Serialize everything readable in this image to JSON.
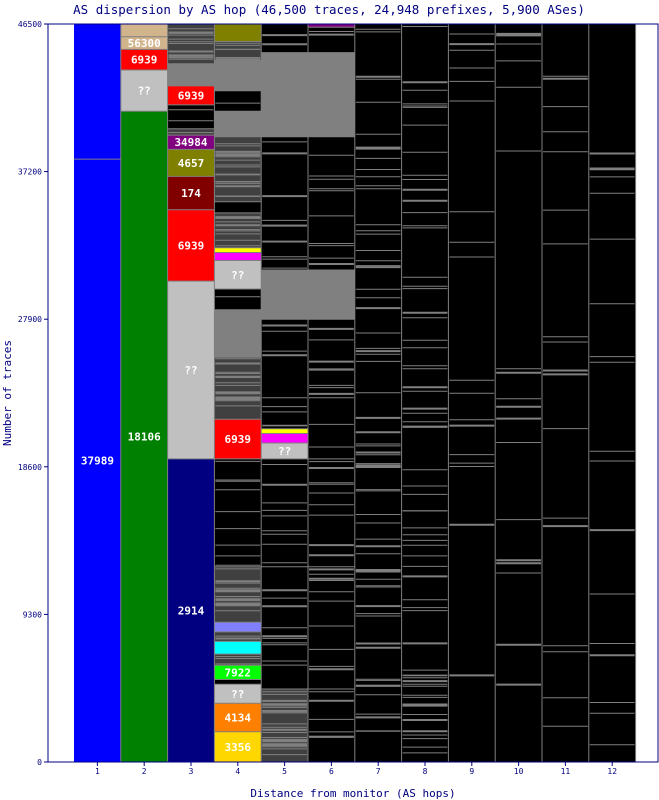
{
  "chart_data": {
    "type": "bar",
    "title": "AS dispersion by AS hop (46,500 traces, 24,948 prefixes, 5,900 ASes)",
    "xlabel": "Distance from monitor (AS hops)",
    "ylabel": "Number of traces",
    "ylim": [
      0,
      46500
    ],
    "y_ticks": [
      0,
      9300,
      18600,
      27900,
      37200,
      46500
    ],
    "categories": [
      "1",
      "2",
      "3",
      "4",
      "5",
      "6",
      "7",
      "8",
      "9",
      "10",
      "11",
      "12"
    ],
    "segment_colors": {
      "blue": "#0000ff",
      "green": "#008000",
      "navy": "#000080",
      "silver": "#c0c0c0",
      "red": "#ff0000",
      "maroon": "#800000",
      "olive": "#808000",
      "purple": "#800080",
      "tan": "#d2b48c",
      "magenta": "#ff00ff",
      "yellow": "#ffff00",
      "cyan": "#00ffff",
      "lime": "#00ff00",
      "orange": "#ff8000",
      "gold": "#ffd700",
      "lavender": "#8080ff",
      "gray": "#808080",
      "dark": "#404040",
      "black": "#000000",
      "frame": "#000080",
      "grid": "#808080"
    },
    "bars": [
      {
        "hop": "1",
        "segments": [
          {
            "start": 0,
            "end": 37989,
            "color": "blue",
            "label": "37989"
          },
          {
            "start": 37989,
            "end": 46500,
            "color": "blue",
            "label": ""
          }
        ]
      },
      {
        "hop": "2",
        "segments": [
          {
            "start": 0,
            "end": 41000,
            "color": "green",
            "label": "18106"
          },
          {
            "start": 41000,
            "end": 43600,
            "color": "silver",
            "label": "??"
          },
          {
            "start": 43600,
            "end": 44900,
            "color": "red",
            "label": "6939"
          },
          {
            "start": 44900,
            "end": 45700,
            "color": "tan",
            "label": "56300"
          },
          {
            "start": 45700,
            "end": 46500,
            "color": "tan",
            "label": ""
          }
        ]
      },
      {
        "hop": "3",
        "segments": [
          {
            "start": 0,
            "end": 19100,
            "color": "navy",
            "label": "2914"
          },
          {
            "start": 19100,
            "end": 30300,
            "color": "silver",
            "label": "??"
          },
          {
            "start": 30300,
            "end": 34800,
            "color": "red",
            "label": "6939"
          },
          {
            "start": 34800,
            "end": 36900,
            "color": "maroon",
            "label": "174"
          },
          {
            "start": 36900,
            "end": 38600,
            "color": "olive",
            "label": "4657"
          },
          {
            "start": 38600,
            "end": 39500,
            "color": "purple",
            "label": "34984"
          },
          {
            "start": 39500,
            "end": 39900,
            "color": "dark",
            "label": ""
          },
          {
            "start": 39900,
            "end": 41400,
            "color": "black",
            "label": ""
          },
          {
            "start": 41400,
            "end": 42600,
            "color": "red",
            "label": "6939"
          },
          {
            "start": 42600,
            "end": 44000,
            "color": "gray",
            "label": ""
          },
          {
            "start": 44000,
            "end": 45800,
            "color": "dark",
            "label": ""
          },
          {
            "start": 45800,
            "end": 46500,
            "color": "dark",
            "label": ""
          }
        ]
      },
      {
        "hop": "4",
        "segments": [
          {
            "start": 0,
            "end": 1900,
            "color": "gold",
            "label": "3356"
          },
          {
            "start": 1900,
            "end": 3700,
            "color": "orange",
            "label": "4134"
          },
          {
            "start": 3700,
            "end": 4900,
            "color": "silver",
            "label": "??"
          },
          {
            "start": 4900,
            "end": 5200,
            "color": "black",
            "label": ""
          },
          {
            "start": 5200,
            "end": 6100,
            "color": "lime",
            "label": "7922"
          },
          {
            "start": 6100,
            "end": 6800,
            "color": "dark",
            "label": ""
          },
          {
            "start": 6800,
            "end": 7600,
            "color": "cyan",
            "label": ""
          },
          {
            "start": 7600,
            "end": 8200,
            "color": "dark",
            "label": ""
          },
          {
            "start": 8200,
            "end": 8800,
            "color": "lavender",
            "label": ""
          },
          {
            "start": 8800,
            "end": 12300,
            "color": "dark",
            "label": ""
          },
          {
            "start": 12300,
            "end": 19100,
            "color": "black",
            "label": ""
          },
          {
            "start": 19100,
            "end": 21600,
            "color": "red",
            "label": "6939"
          },
          {
            "start": 21600,
            "end": 25500,
            "color": "dark",
            "label": ""
          },
          {
            "start": 25500,
            "end": 28500,
            "color": "gray",
            "label": ""
          },
          {
            "start": 28500,
            "end": 29800,
            "color": "black",
            "label": ""
          },
          {
            "start": 29800,
            "end": 31600,
            "color": "silver",
            "label": "??"
          },
          {
            "start": 31600,
            "end": 32100,
            "color": "magenta",
            "label": ""
          },
          {
            "start": 32100,
            "end": 32400,
            "color": "yellow",
            "label": ""
          },
          {
            "start": 32400,
            "end": 34600,
            "color": "dark",
            "label": ""
          },
          {
            "start": 34600,
            "end": 35300,
            "color": "black",
            "label": ""
          },
          {
            "start": 35300,
            "end": 39400,
            "color": "dark",
            "label": ""
          },
          {
            "start": 39400,
            "end": 41000,
            "color": "gray",
            "label": ""
          },
          {
            "start": 41000,
            "end": 42300,
            "color": "black",
            "label": ""
          },
          {
            "start": 42300,
            "end": 44200,
            "color": "gray",
            "label": ""
          },
          {
            "start": 44200,
            "end": 45400,
            "color": "dark",
            "label": ""
          },
          {
            "start": 45400,
            "end": 46500,
            "color": "olive",
            "label": ""
          }
        ]
      },
      {
        "hop": "5",
        "segments": [
          {
            "start": 0,
            "end": 4600,
            "color": "dark",
            "label": ""
          },
          {
            "start": 4600,
            "end": 12300,
            "color": "black",
            "label": ""
          },
          {
            "start": 12300,
            "end": 19100,
            "color": "black",
            "label": ""
          },
          {
            "start": 19100,
            "end": 20100,
            "color": "silver",
            "label": "??"
          },
          {
            "start": 20100,
            "end": 20700,
            "color": "magenta",
            "label": ""
          },
          {
            "start": 20700,
            "end": 21000,
            "color": "yellow",
            "label": ""
          },
          {
            "start": 21000,
            "end": 27900,
            "color": "black",
            "label": ""
          },
          {
            "start": 27900,
            "end": 31000,
            "color": "gray",
            "label": ""
          },
          {
            "start": 31000,
            "end": 39400,
            "color": "black",
            "label": ""
          },
          {
            "start": 39400,
            "end": 44700,
            "color": "gray",
            "label": ""
          },
          {
            "start": 44700,
            "end": 46500,
            "color": "black",
            "label": ""
          }
        ]
      },
      {
        "hop": "6",
        "segments": [
          {
            "start": 0,
            "end": 4600,
            "color": "black",
            "label": ""
          },
          {
            "start": 4600,
            "end": 12300,
            "color": "black",
            "label": ""
          },
          {
            "start": 12300,
            "end": 19100,
            "color": "black",
            "label": ""
          },
          {
            "start": 19100,
            "end": 27900,
            "color": "black",
            "label": ""
          },
          {
            "start": 27900,
            "end": 31000,
            "color": "gray",
            "label": ""
          },
          {
            "start": 31000,
            "end": 39400,
            "color": "black",
            "label": ""
          },
          {
            "start": 39400,
            "end": 44700,
            "color": "gray",
            "label": ""
          },
          {
            "start": 44700,
            "end": 46300,
            "color": "black",
            "label": ""
          },
          {
            "start": 46300,
            "end": 46500,
            "color": "purple",
            "label": ""
          }
        ]
      },
      {
        "hop": "7",
        "segments": [
          {
            "start": 0,
            "end": 46500,
            "color": "black",
            "label": ""
          }
        ]
      },
      {
        "hop": "8",
        "segments": [
          {
            "start": 0,
            "end": 46500,
            "color": "black",
            "label": ""
          }
        ]
      },
      {
        "hop": "9",
        "segments": [
          {
            "start": 0,
            "end": 46500,
            "color": "black",
            "label": ""
          }
        ]
      },
      {
        "hop": "10",
        "segments": [
          {
            "start": 0,
            "end": 46500,
            "color": "black",
            "label": ""
          }
        ]
      },
      {
        "hop": "11",
        "segments": [
          {
            "start": 0,
            "end": 46500,
            "color": "black",
            "label": ""
          }
        ]
      },
      {
        "hop": "12",
        "segments": [
          {
            "start": 0,
            "end": 46500,
            "color": "black",
            "label": ""
          }
        ]
      }
    ]
  }
}
